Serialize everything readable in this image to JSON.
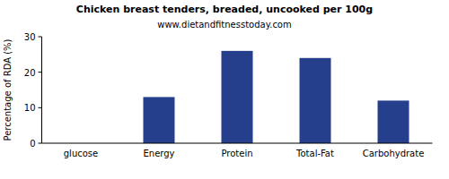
{
  "chart_data": {
    "type": "bar",
    "title": "Chicken breast tenders, breaded, uncooked per 100g",
    "subtitle": "www.dietandfitnesstoday.com",
    "y_label": "Percentage of RDA (%)",
    "categories": [
      "glucose",
      "Energy",
      "Protein",
      "Total-Fat",
      "Carbohydrate"
    ],
    "values": [
      0,
      13,
      26,
      24,
      12
    ],
    "color": "#263f8c",
    "ylim": [
      0,
      30
    ],
    "yticks": [
      0,
      10,
      20,
      30
    ],
    "grid": false
  }
}
